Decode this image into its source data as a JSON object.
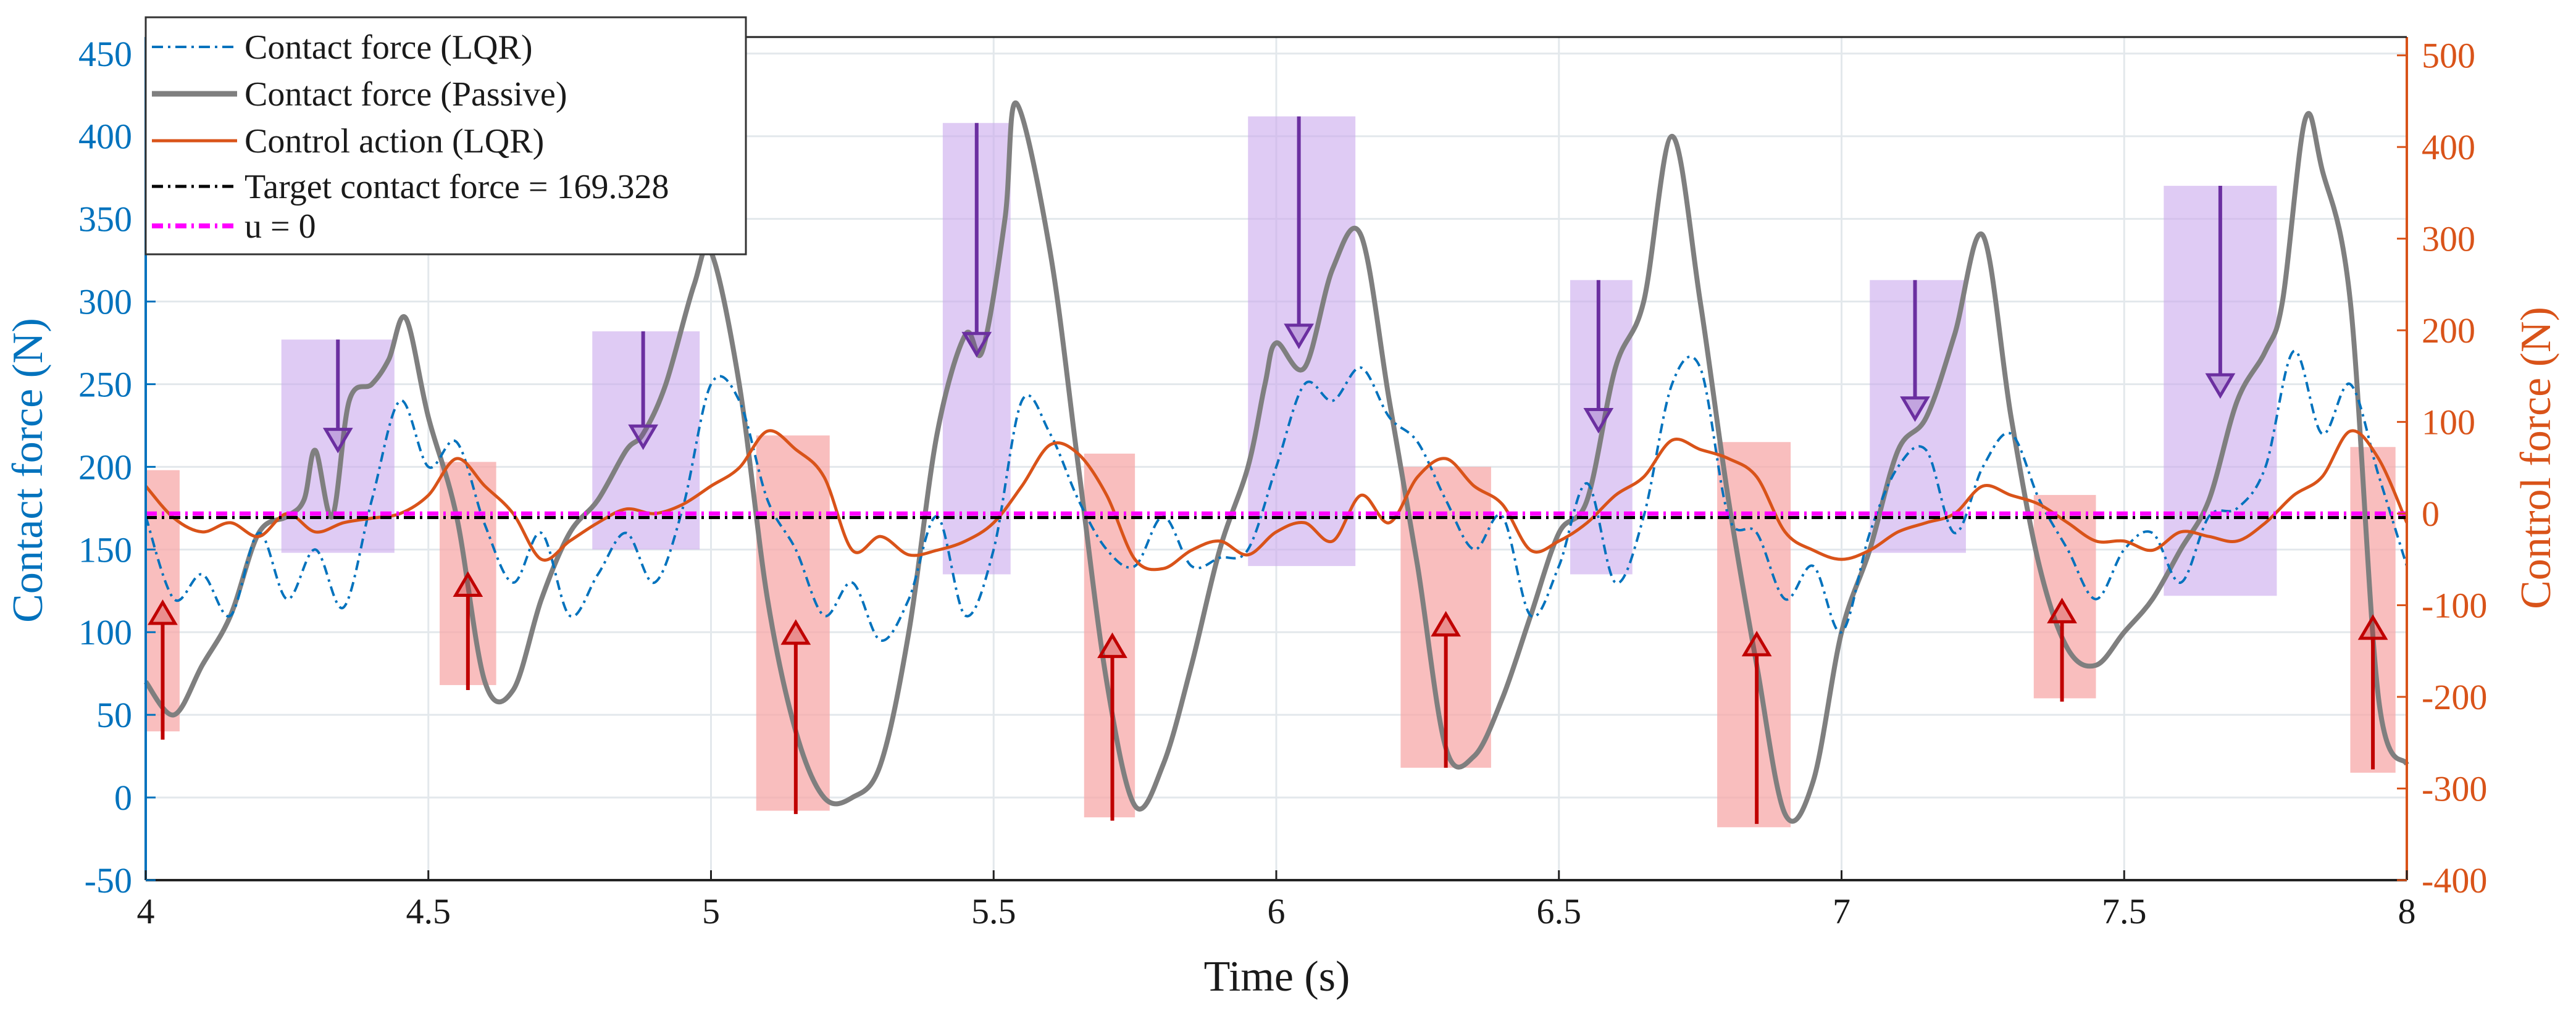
{
  "chart_data": {
    "type": "line",
    "xlabel": "Time (s)",
    "ylabel_left": "Contact force (N)",
    "ylabel_right": "Control force (N)",
    "xlim": [
      4,
      8
    ],
    "ylim_left": [
      -50,
      460
    ],
    "ylim_right": [
      -400,
      520
    ],
    "x_ticks": [
      "4",
      "4.5",
      "5",
      "5.5",
      "6",
      "6.5",
      "7",
      "7.5",
      "8"
    ],
    "x_tick_values": [
      4,
      4.5,
      5,
      5.5,
      6,
      6.5,
      7,
      7.5,
      8
    ],
    "y_left_ticks": [
      "-50",
      "0",
      "50",
      "100",
      "150",
      "200",
      "250",
      "300",
      "350",
      "400",
      "450"
    ],
    "y_left_tick_values": [
      -50,
      0,
      50,
      100,
      150,
      200,
      250,
      300,
      350,
      400,
      450
    ],
    "y_right_ticks": [
      "-400",
      "-300",
      "-200",
      "-100",
      "0",
      "100",
      "200",
      "300",
      "400",
      "500"
    ],
    "y_right_tick_values": [
      -400,
      -300,
      -200,
      -100,
      0,
      100,
      200,
      300,
      400,
      500
    ],
    "grid": true,
    "colors": {
      "left_axis": "#0072bd",
      "right_axis": "#d95319",
      "lqr": "#0072bd",
      "passive": "#7f7f7f",
      "control": "#d95319",
      "target": "#000000",
      "u0": "#ff00ff",
      "purple_box": "#c9a8ec",
      "purple_arrow": "#6b2fa0",
      "red_box": "#f7a8a8",
      "red_arrow": "#c00000"
    },
    "legend": {
      "location": "top-left",
      "entries": [
        {
          "label": "Contact force (LQR)",
          "style": "dash-dot",
          "color": "#0072bd"
        },
        {
          "label": "Contact force (Passive)",
          "style": "solid-thick",
          "color": "#7f7f7f"
        },
        {
          "label": "Control action (LQR)",
          "style": "solid",
          "color": "#d95319"
        },
        {
          "label": "Target contact force = 169.328",
          "style": "dash-dot",
          "color": "#000000"
        },
        {
          "label": "u = 0",
          "style": "dash-dot-thick",
          "color": "#ff00ff"
        }
      ]
    },
    "target_contact_force": 169.328,
    "series": [
      {
        "name": "Contact force (Passive)",
        "axis": "left",
        "x": [
          4.0,
          4.05,
          4.1,
          4.15,
          4.2,
          4.25,
          4.28,
          4.3,
          4.33,
          4.36,
          4.4,
          4.43,
          4.46,
          4.5,
          4.55,
          4.6,
          4.65,
          4.7,
          4.75,
          4.8,
          4.85,
          4.88,
          4.92,
          4.97,
          5.0,
          5.05,
          5.1,
          5.15,
          5.2,
          5.25,
          5.3,
          5.35,
          5.4,
          5.45,
          5.48,
          5.52,
          5.54,
          5.6,
          5.65,
          5.7,
          5.75,
          5.8,
          5.85,
          5.9,
          5.95,
          5.98,
          6.0,
          6.05,
          6.1,
          6.15,
          6.2,
          6.25,
          6.3,
          6.35,
          6.4,
          6.45,
          6.5,
          6.55,
          6.6,
          6.65,
          6.7,
          6.75,
          6.8,
          6.85,
          6.9,
          6.95,
          7.0,
          7.05,
          7.1,
          7.15,
          7.2,
          7.25,
          7.3,
          7.35,
          7.4,
          7.45,
          7.5,
          7.55,
          7.6,
          7.65,
          7.7,
          7.75,
          7.78,
          7.82,
          7.85,
          7.9,
          7.95,
          8.0
        ],
        "values": [
          70,
          50,
          80,
          110,
          160,
          170,
          180,
          210,
          170,
          240,
          250,
          265,
          290,
          230,
          170,
          70,
          65,
          120,
          160,
          180,
          210,
          220,
          250,
          310,
          330,
          250,
          120,
          40,
          0,
          0,
          20,
          100,
          220,
          280,
          270,
          350,
          420,
          330,
          200,
          70,
          -5,
          20,
          80,
          150,
          200,
          250,
          275,
          260,
          320,
          340,
          240,
          140,
          30,
          25,
          60,
          110,
          160,
          180,
          260,
          300,
          400,
          300,
          180,
          80,
          -10,
          10,
          100,
          150,
          210,
          230,
          280,
          340,
          230,
          140,
          90,
          80,
          100,
          120,
          150,
          180,
          240,
          270,
          300,
          410,
          380,
          300,
          60,
          20
        ]
      },
      {
        "name": "Contact force (LQR)",
        "axis": "left",
        "x": [
          4.0,
          4.05,
          4.1,
          4.15,
          4.2,
          4.25,
          4.3,
          4.35,
          4.4,
          4.45,
          4.5,
          4.55,
          4.6,
          4.65,
          4.7,
          4.75,
          4.8,
          4.85,
          4.9,
          4.95,
          5.0,
          5.05,
          5.1,
          5.15,
          5.2,
          5.25,
          5.3,
          5.35,
          5.4,
          5.45,
          5.5,
          5.55,
          5.6,
          5.65,
          5.7,
          5.75,
          5.8,
          5.85,
          5.9,
          5.95,
          6.0,
          6.05,
          6.1,
          6.15,
          6.2,
          6.25,
          6.3,
          6.35,
          6.4,
          6.45,
          6.5,
          6.55,
          6.6,
          6.65,
          6.7,
          6.75,
          6.8,
          6.85,
          6.9,
          6.95,
          7.0,
          7.05,
          7.1,
          7.15,
          7.2,
          7.25,
          7.3,
          7.35,
          7.4,
          7.45,
          7.5,
          7.55,
          7.6,
          7.65,
          7.7,
          7.75,
          7.8,
          7.85,
          7.9,
          7.95,
          8.0
        ],
        "values": [
          170,
          120,
          135,
          110,
          160,
          120,
          150,
          115,
          180,
          240,
          200,
          215,
          165,
          130,
          160,
          110,
          135,
          160,
          130,
          175,
          250,
          240,
          180,
          150,
          110,
          130,
          95,
          120,
          170,
          110,
          150,
          240,
          220,
          180,
          150,
          140,
          170,
          140,
          145,
          150,
          200,
          250,
          240,
          260,
          230,
          215,
          180,
          150,
          170,
          110,
          140,
          190,
          130,
          170,
          250,
          260,
          170,
          160,
          120,
          140,
          100,
          160,
          200,
          210,
          160,
          200,
          220,
          180,
          150,
          120,
          150,
          160,
          130,
          170,
          175,
          200,
          270,
          220,
          250,
          195,
          140
        ]
      },
      {
        "name": "Control action (LQR)",
        "axis": "right",
        "x": [
          4.0,
          4.05,
          4.1,
          4.15,
          4.2,
          4.25,
          4.3,
          4.35,
          4.4,
          4.45,
          4.5,
          4.55,
          4.6,
          4.65,
          4.7,
          4.75,
          4.8,
          4.85,
          4.9,
          4.95,
          5.0,
          5.05,
          5.1,
          5.15,
          5.2,
          5.25,
          5.3,
          5.35,
          5.4,
          5.45,
          5.5,
          5.55,
          5.6,
          5.65,
          5.7,
          5.75,
          5.8,
          5.85,
          5.9,
          5.95,
          6.0,
          6.05,
          6.1,
          6.15,
          6.2,
          6.25,
          6.3,
          6.35,
          6.4,
          6.45,
          6.5,
          6.55,
          6.6,
          6.65,
          6.7,
          6.75,
          6.8,
          6.85,
          6.9,
          6.95,
          7.0,
          7.05,
          7.1,
          7.15,
          7.2,
          7.25,
          7.3,
          7.35,
          7.4,
          7.45,
          7.5,
          7.55,
          7.6,
          7.65,
          7.7,
          7.75,
          7.8,
          7.85,
          7.9,
          7.95,
          8.0
        ],
        "values": [
          30,
          -5,
          -20,
          -10,
          -25,
          0,
          -20,
          -10,
          -5,
          0,
          20,
          60,
          30,
          0,
          -50,
          -30,
          -10,
          5,
          0,
          10,
          30,
          50,
          90,
          70,
          40,
          -40,
          -25,
          -45,
          -40,
          -30,
          -10,
          30,
          75,
          65,
          20,
          -50,
          -60,
          -40,
          -30,
          -45,
          -20,
          -10,
          -30,
          20,
          -10,
          40,
          60,
          30,
          10,
          -40,
          -30,
          -10,
          20,
          40,
          80,
          70,
          60,
          40,
          -20,
          -40,
          -50,
          -40,
          -20,
          -10,
          0,
          30,
          20,
          10,
          -10,
          -30,
          -30,
          -40,
          -20,
          -25,
          -30,
          -10,
          20,
          40,
          90,
          60,
          -10
        ]
      }
    ],
    "highlight_regions": {
      "purple": [
        {
          "x0": 4.24,
          "x1": 4.44,
          "y0": 148,
          "y1": 277
        },
        {
          "x0": 4.79,
          "x1": 4.98,
          "y0": 150,
          "y1": 282
        },
        {
          "x0": 5.41,
          "x1": 5.53,
          "y0": 135,
          "y1": 408
        },
        {
          "x0": 5.95,
          "x1": 6.14,
          "y0": 140,
          "y1": 412
        },
        {
          "x0": 6.52,
          "x1": 6.63,
          "y0": 135,
          "y1": 313
        },
        {
          "x0": 7.05,
          "x1": 7.22,
          "y0": 148,
          "y1": 313
        },
        {
          "x0": 7.57,
          "x1": 7.77,
          "y0": 122,
          "y1": 370
        }
      ],
      "red": [
        {
          "x0": 4.0,
          "x1": 4.06,
          "y0": 40,
          "y1": 198
        },
        {
          "x0": 4.52,
          "x1": 4.62,
          "y0": 68,
          "y1": 203
        },
        {
          "x0": 5.08,
          "x1": 5.21,
          "y0": -8,
          "y1": 219
        },
        {
          "x0": 5.66,
          "x1": 5.75,
          "y0": -12,
          "y1": 208
        },
        {
          "x0": 6.22,
          "x1": 6.38,
          "y0": 18,
          "y1": 200
        },
        {
          "x0": 6.78,
          "x1": 6.91,
          "y0": -18,
          "y1": 215
        },
        {
          "x0": 7.34,
          "x1": 7.45,
          "y0": 60,
          "y1": 183
        },
        {
          "x0": 7.9,
          "x1": 7.98,
          "y0": 15,
          "y1": 212
        }
      ]
    },
    "arrows": {
      "down": [
        {
          "x": 4.34,
          "from": 277,
          "to": 210
        },
        {
          "x": 4.88,
          "from": 282,
          "to": 212
        },
        {
          "x": 5.47,
          "from": 408,
          "to": 268
        },
        {
          "x": 6.04,
          "from": 412,
          "to": 273
        },
        {
          "x": 6.57,
          "from": 313,
          "to": 222
        },
        {
          "x": 7.13,
          "from": 313,
          "to": 229
        },
        {
          "x": 7.67,
          "from": 370,
          "to": 243
        }
      ],
      "up": [
        {
          "x": 4.03,
          "from": 35,
          "to": 118
        },
        {
          "x": 4.57,
          "from": 65,
          "to": 135
        },
        {
          "x": 5.15,
          "from": -10,
          "to": 106
        },
        {
          "x": 5.71,
          "from": -14,
          "to": 98
        },
        {
          "x": 6.3,
          "from": 18,
          "to": 111
        },
        {
          "x": 6.85,
          "from": -16,
          "to": 99
        },
        {
          "x": 7.39,
          "from": 58,
          "to": 119
        },
        {
          "x": 7.94,
          "from": 17,
          "to": 109
        }
      ]
    }
  }
}
